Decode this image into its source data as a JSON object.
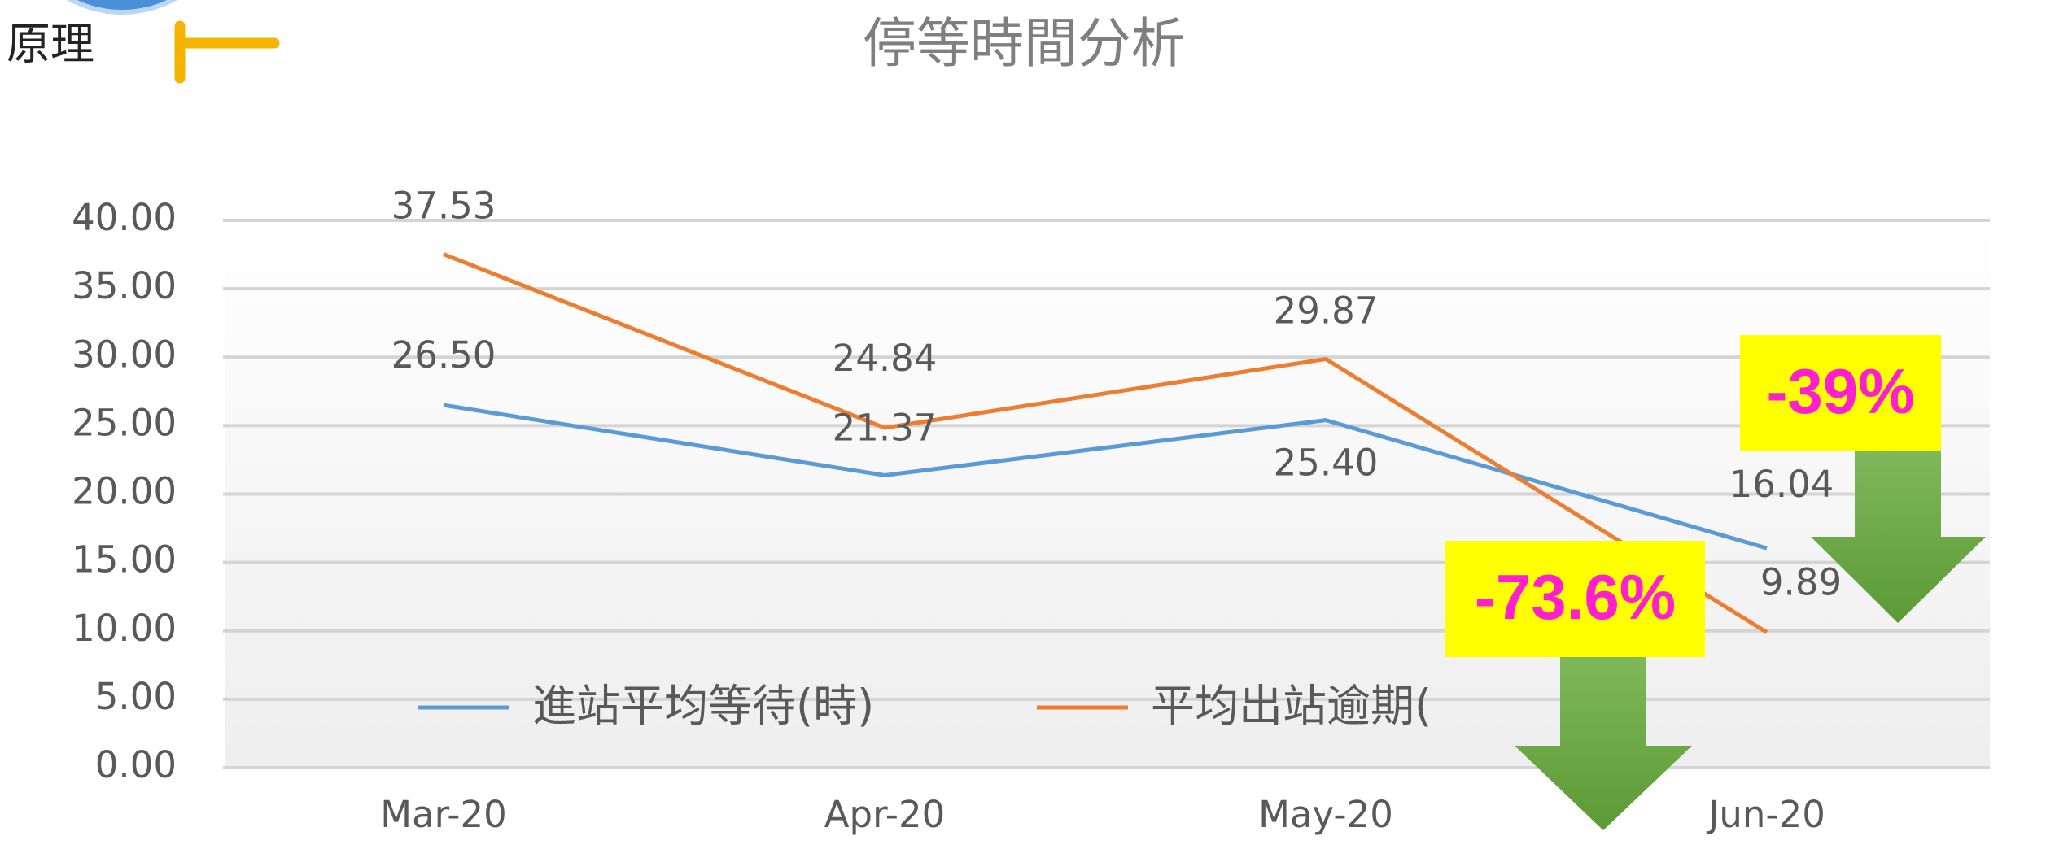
{
  "header": {
    "label": "原理"
  },
  "chart_data": {
    "type": "line",
    "title": "停等時間分析",
    "categories": [
      "Mar-20",
      "Apr-20",
      "May-20",
      "Jun-20"
    ],
    "series": [
      {
        "name": "進站平均等待(時)",
        "color": "#5b9bd5",
        "values": [
          26.5,
          21.37,
          25.4,
          16.04
        ],
        "value_labels": [
          "26.50",
          "21.37",
          "25.40",
          "16.04"
        ]
      },
      {
        "name": "平均出站逾期(",
        "color": "#ed7d31",
        "values": [
          37.53,
          24.84,
          29.87,
          9.89
        ],
        "value_labels": [
          "37.53",
          "24.84",
          "29.87",
          "9.89"
        ]
      }
    ],
    "ylim": [
      0,
      40
    ],
    "yticks": [
      {
        "value": 0,
        "label": "0.00"
      },
      {
        "value": 5,
        "label": "5.00"
      },
      {
        "value": 10,
        "label": "10.00"
      },
      {
        "value": 15,
        "label": "15.00"
      },
      {
        "value": 20,
        "label": "20.00"
      },
      {
        "value": 25,
        "label": "25.00"
      },
      {
        "value": 30,
        "label": "30.00"
      },
      {
        "value": 35,
        "label": "35.00"
      },
      {
        "value": 40,
        "label": "40.00"
      }
    ],
    "grid": true,
    "annotations": [
      "-73.6%",
      "-39%"
    ]
  }
}
